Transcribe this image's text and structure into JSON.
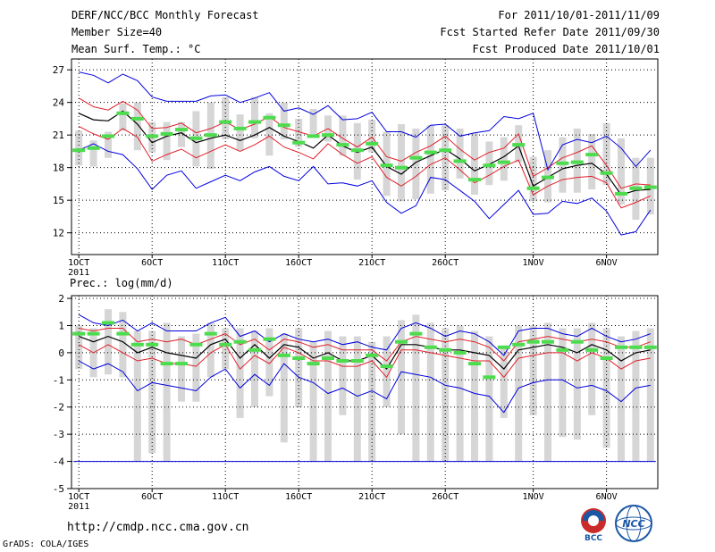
{
  "header": {
    "title": "DERF/NCC/BCC Monthly Forecast",
    "member_size": "Member Size=40",
    "variable": "Mean Surf. Temp.: °C",
    "period": "For 2011/10/01-2011/11/09",
    "started": "Fcst Started Refer Date 2011/09/30",
    "produced": "Fcst Produced Date 2011/10/01"
  },
  "footer": {
    "url": "http://cmdp.ncc.cma.gov.cn",
    "credit": "GrADS: COLA/IGES",
    "logo_left_text": "BCC",
    "logo_right_text": "NCC"
  },
  "x_axis": {
    "ticks": [
      {
        "day": 1,
        "label": "1OCT"
      },
      {
        "day": 6,
        "label": "6OCT"
      },
      {
        "day": 11,
        "label": "11OCT"
      },
      {
        "day": 16,
        "label": "16OCT"
      },
      {
        "day": 21,
        "label": "21OCT"
      },
      {
        "day": 26,
        "label": "26OCT"
      },
      {
        "day": 32,
        "label": "1NOV"
      },
      {
        "day": 37,
        "label": "6NOV"
      }
    ],
    "year": "2011",
    "days": 40
  },
  "colors": {
    "box": "#d6d6d6",
    "obs": "#4ddc4d",
    "mean": "#000000",
    "inner": "#e0202a",
    "outer": "#0000dd",
    "grid": "#000000"
  },
  "chart_data": [
    {
      "type": "line",
      "title": "Mean Surf. Temp.: °C",
      "x": [
        1,
        2,
        3,
        4,
        5,
        6,
        7,
        8,
        9,
        10,
        11,
        12,
        13,
        14,
        15,
        16,
        17,
        18,
        19,
        20,
        21,
        22,
        23,
        24,
        25,
        26,
        27,
        28,
        29,
        30,
        31,
        32,
        33,
        34,
        35,
        36,
        37,
        38,
        39,
        40
      ],
      "ylim": [
        10,
        28
      ],
      "yticks": [
        12,
        15,
        18,
        21,
        24,
        27
      ],
      "series": [
        {
          "name": "max",
          "values": [
            26.8,
            26.5,
            25.8,
            26.6,
            26.0,
            24.5,
            24.1,
            24.1,
            24.1,
            24.6,
            24.7,
            24.0,
            24.4,
            24.9,
            23.2,
            23.5,
            22.9,
            23.7,
            22.4,
            22.5,
            23.1,
            21.3,
            21.3,
            20.8,
            21.9,
            22.0,
            20.9,
            21.2,
            21.4,
            22.7,
            22.5,
            23.0,
            17.8,
            20.1,
            20.6,
            20.3,
            20.9,
            19.8,
            18.1,
            19.6
          ]
        },
        {
          "name": "upper",
          "values": [
            24.4,
            23.6,
            23.3,
            24.1,
            23.3,
            21.6,
            21.7,
            22.1,
            21.2,
            21.6,
            22.2,
            21.5,
            22.0,
            22.7,
            21.7,
            21.3,
            20.9,
            21.6,
            20.7,
            19.9,
            20.8,
            19.0,
            18.6,
            19.4,
            20.0,
            20.9,
            19.7,
            18.7,
            19.4,
            19.8,
            21.1,
            17.2,
            18.0,
            18.9,
            19.4,
            20.0,
            18.2,
            16.1,
            16.5,
            16.4
          ]
        },
        {
          "name": "mean",
          "values": [
            23.0,
            22.4,
            22.3,
            23.2,
            22.0,
            20.3,
            20.9,
            21.2,
            20.3,
            20.7,
            21.0,
            20.5,
            21.0,
            21.7,
            20.9,
            20.4,
            19.8,
            21.0,
            20.0,
            19.4,
            19.9,
            18.1,
            17.4,
            18.5,
            19.1,
            19.7,
            18.8,
            17.7,
            18.3,
            19.0,
            20.0,
            16.3,
            17.1,
            17.9,
            18.2,
            18.4,
            17.4,
            15.5,
            15.9,
            16.0
          ]
        },
        {
          "name": "lower",
          "values": [
            21.8,
            21.1,
            20.6,
            21.6,
            20.8,
            18.6,
            19.2,
            19.7,
            18.9,
            19.5,
            20.1,
            19.5,
            20.1,
            20.9,
            19.9,
            19.4,
            18.8,
            20.2,
            19.2,
            18.4,
            19.0,
            17.1,
            16.3,
            17.2,
            18.3,
            18.9,
            17.8,
            16.6,
            17.3,
            18.1,
            18.7,
            15.5,
            16.3,
            16.9,
            17.1,
            17.2,
            16.6,
            14.3,
            14.8,
            15.4
          ]
        },
        {
          "name": "min",
          "values": [
            19.6,
            20.2,
            19.5,
            19.2,
            17.9,
            16.0,
            17.3,
            17.7,
            16.1,
            16.7,
            17.3,
            16.8,
            17.6,
            18.1,
            17.2,
            16.8,
            18.1,
            16.5,
            16.6,
            16.3,
            16.8,
            14.8,
            13.8,
            14.5,
            17.1,
            16.9,
            15.9,
            14.9,
            13.3,
            14.6,
            15.9,
            13.7,
            13.8,
            14.9,
            14.7,
            15.2,
            14.0,
            11.8,
            12.1,
            14.1
          ]
        },
        {
          "name": "box_top",
          "values": [
            21.4,
            20.5,
            21.3,
            23.9,
            24.0,
            22.2,
            22.2,
            22.2,
            23.2,
            24.0,
            24.5,
            22.9,
            24.5,
            23.0,
            24.0,
            22.5,
            23.4,
            22.8,
            22.8,
            22.1,
            22.4,
            21.3,
            22.0,
            21.6,
            21.9,
            21.9,
            21.6,
            21.2,
            20.4,
            20.8,
            21.9,
            19.0,
            19.6,
            20.8,
            21.6,
            21.1,
            22.1,
            20.7,
            18.9,
            18.9
          ]
        },
        {
          "name": "box_bottom",
          "values": [
            18.2,
            18.1,
            18.9,
            21.4,
            19.6,
            19.4,
            18.7,
            19.9,
            18.1,
            17.9,
            20.6,
            19.6,
            20.7,
            19.1,
            20.6,
            19.9,
            20.9,
            20.4,
            19.1,
            16.9,
            19.4,
            15.4,
            14.9,
            15.1,
            15.6,
            15.9,
            17.0,
            15.5,
            16.4,
            16.8,
            18.5,
            14.9,
            14.8,
            15.7,
            15.7,
            16.0,
            16.4,
            14.6,
            13.2,
            13.7
          ]
        },
        {
          "name": "observed",
          "values": [
            19.6,
            19.8,
            20.9,
            23.0,
            22.5,
            20.9,
            21.1,
            21.5,
            20.7,
            21.0,
            22.2,
            21.6,
            22.2,
            22.6,
            21.9,
            20.3,
            20.9,
            21.0,
            20.1,
            19.6,
            20.2,
            18.2,
            18.0,
            18.9,
            19.4,
            19.6,
            18.6,
            16.9,
            18.2,
            18.5,
            20.1,
            16.1,
            17.1,
            18.4,
            18.5,
            19.2,
            17.5,
            15.6,
            16.1,
            16.2
          ]
        }
      ]
    },
    {
      "type": "line",
      "title": "Prec.: log(mm/d)",
      "x": [
        1,
        2,
        3,
        4,
        5,
        6,
        7,
        8,
        9,
        10,
        11,
        12,
        13,
        14,
        15,
        16,
        17,
        18,
        19,
        20,
        21,
        22,
        23,
        24,
        25,
        26,
        27,
        28,
        29,
        30,
        31,
        32,
        33,
        34,
        35,
        36,
        37,
        38,
        39,
        40
      ],
      "ylim": [
        -5,
        2.1
      ],
      "yticks": [
        -5,
        -4,
        -3,
        -2,
        -1,
        0,
        1,
        2
      ],
      "baseline": -4,
      "series": [
        {
          "name": "max",
          "values": [
            1.4,
            1.1,
            1.0,
            1.2,
            0.8,
            1.1,
            0.8,
            0.8,
            0.8,
            1.1,
            1.3,
            0.6,
            0.8,
            0.4,
            0.7,
            0.5,
            0.4,
            0.5,
            0.3,
            0.4,
            0.2,
            0.1,
            0.9,
            1.1,
            0.9,
            0.6,
            0.8,
            0.7,
            0.4,
            -0.1,
            0.8,
            0.9,
            0.9,
            0.7,
            0.6,
            0.9,
            0.6,
            0.4,
            0.5,
            0.7
          ]
        },
        {
          "name": "upper",
          "values": [
            0.9,
            0.8,
            0.9,
            0.9,
            0.4,
            0.5,
            0.4,
            0.5,
            0.3,
            0.5,
            0.7,
            0.3,
            0.5,
            0.1,
            0.5,
            0.4,
            0.2,
            0.3,
            0.1,
            0.1,
            0.1,
            -0.3,
            0.4,
            0.6,
            0.5,
            0.4,
            0.5,
            0.4,
            0.2,
            -0.3,
            0.4,
            0.5,
            0.6,
            0.5,
            0.4,
            0.5,
            0.4,
            0.2,
            0.2,
            0.4
          ]
        },
        {
          "name": "mean",
          "values": [
            0.6,
            0.4,
            0.6,
            0.4,
            0.0,
            0.2,
            0.0,
            -0.1,
            -0.2,
            0.3,
            0.5,
            -0.2,
            0.3,
            -0.2,
            0.3,
            0.2,
            -0.2,
            0.0,
            -0.3,
            -0.3,
            -0.1,
            -0.6,
            0.3,
            0.3,
            0.2,
            0.1,
            0.1,
            0.0,
            -0.1,
            -0.6,
            0.1,
            0.2,
            0.3,
            0.2,
            0.0,
            0.3,
            0.1,
            -0.3,
            0.0,
            0.1
          ]
        },
        {
          "name": "lower",
          "values": [
            0.3,
            0.0,
            0.3,
            0.0,
            -0.3,
            -0.2,
            -0.4,
            -0.4,
            -0.5,
            0.0,
            0.3,
            -0.6,
            -0.1,
            -0.4,
            0.2,
            0.0,
            -0.3,
            -0.3,
            -0.5,
            -0.5,
            -0.3,
            -0.9,
            0.1,
            0.1,
            0.0,
            -0.1,
            -0.2,
            -0.3,
            -0.3,
            -0.9,
            -0.2,
            -0.1,
            0.0,
            0.0,
            -0.3,
            0.0,
            -0.2,
            -0.6,
            -0.3,
            -0.2
          ]
        },
        {
          "name": "min",
          "values": [
            -0.3,
            -0.6,
            -0.4,
            -0.7,
            -1.4,
            -1.1,
            -1.2,
            -1.3,
            -1.4,
            -0.9,
            -0.6,
            -1.3,
            -0.8,
            -1.2,
            -0.4,
            -0.9,
            -1.1,
            -1.5,
            -1.3,
            -1.6,
            -1.4,
            -1.7,
            -0.7,
            -0.8,
            -0.9,
            -1.2,
            -1.3,
            -1.5,
            -1.6,
            -2.2,
            -1.3,
            -1.1,
            -1.0,
            -1.0,
            -1.3,
            -1.2,
            -1.4,
            -1.8,
            -1.3,
            -1.2
          ]
        },
        {
          "name": "box_top",
          "values": [
            1.0,
            0.9,
            1.6,
            1.5,
            0.8,
            0.8,
            1.1,
            0.6,
            0.7,
            1.1,
            0.9,
            0.9,
            0.8,
            0.9,
            0.7,
            0.9,
            0.4,
            0.8,
            0.6,
            0.6,
            0.4,
            0.6,
            1.2,
            1.4,
            1.1,
            0.9,
            1.0,
            0.8,
            0.6,
            0.2,
            1.0,
            1.0,
            1.1,
            0.9,
            0.9,
            1.1,
            0.9,
            0.6,
            0.8,
            0.9
          ]
        },
        {
          "name": "box_bottom",
          "values": [
            -0.6,
            -0.9,
            -0.8,
            -0.9,
            -4.0,
            -3.7,
            -4.0,
            -1.8,
            -1.8,
            -0.9,
            -0.6,
            -2.4,
            -2.0,
            -1.6,
            -3.3,
            -2.0,
            -4.0,
            -4.0,
            -2.3,
            -4.0,
            -4.0,
            -2.0,
            -3.0,
            -4.0,
            -4.0,
            -4.0,
            -4.0,
            -4.0,
            -4.0,
            -2.4,
            -4.0,
            -2.3,
            -4.0,
            -3.1,
            -3.2,
            -2.3,
            -3.5,
            -4.0,
            -4.0,
            -4.0
          ]
        },
        {
          "name": "observed",
          "values": [
            0.7,
            0.7,
            1.1,
            0.7,
            0.3,
            0.3,
            -0.4,
            -0.4,
            0.3,
            0.7,
            0.3,
            0.4,
            0.1,
            0.5,
            -0.1,
            -0.2,
            -0.4,
            -0.2,
            -0.3,
            -0.3,
            -0.1,
            -0.5,
            0.4,
            0.7,
            0.2,
            0.1,
            0.0,
            -0.4,
            -0.9,
            0.2,
            0.3,
            0.4,
            0.4,
            0.1,
            0.4,
            0.1,
            -0.2,
            0.2,
            0.2,
            0.2
          ]
        }
      ]
    }
  ]
}
